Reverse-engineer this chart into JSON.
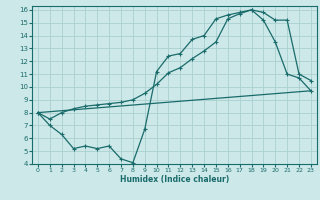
{
  "xlabel": "Humidex (Indice chaleur)",
  "bg_color": "#cce8e8",
  "line_color": "#1a6b6b",
  "grid_color": "#aad0d0",
  "xlim": [
    -0.5,
    23.5
  ],
  "ylim": [
    4,
    16.3
  ],
  "xticks": [
    0,
    1,
    2,
    3,
    4,
    5,
    6,
    7,
    8,
    9,
    10,
    11,
    12,
    13,
    14,
    15,
    16,
    17,
    18,
    19,
    20,
    21,
    22,
    23
  ],
  "yticks": [
    4,
    5,
    6,
    7,
    8,
    9,
    10,
    11,
    12,
    13,
    14,
    15,
    16
  ],
  "line1_x": [
    0,
    1,
    2,
    3,
    4,
    5,
    6,
    7,
    8,
    9,
    10,
    11,
    12,
    13,
    14,
    15,
    16,
    17,
    18,
    19,
    20,
    21,
    22,
    23
  ],
  "line1_y": [
    8.0,
    7.0,
    6.3,
    5.2,
    5.4,
    5.2,
    5.4,
    4.4,
    4.1,
    6.7,
    11.2,
    12.4,
    12.6,
    13.7,
    14.0,
    15.3,
    15.6,
    15.8,
    16.0,
    15.2,
    13.5,
    11.0,
    10.7,
    9.7
  ],
  "line2_x": [
    0,
    1,
    2,
    3,
    4,
    5,
    6,
    7,
    8,
    9,
    10,
    11,
    12,
    13,
    14,
    15,
    16,
    17,
    18,
    19,
    20,
    21,
    22,
    23
  ],
  "line2_y": [
    8.0,
    7.5,
    8.0,
    8.3,
    8.5,
    8.6,
    8.7,
    8.8,
    9.0,
    9.5,
    10.2,
    11.1,
    11.5,
    12.2,
    12.8,
    13.5,
    15.3,
    15.7,
    16.0,
    15.8,
    15.2,
    15.2,
    11.0,
    10.5
  ],
  "line3_x": [
    0,
    23
  ],
  "line3_y": [
    8.0,
    9.7
  ]
}
